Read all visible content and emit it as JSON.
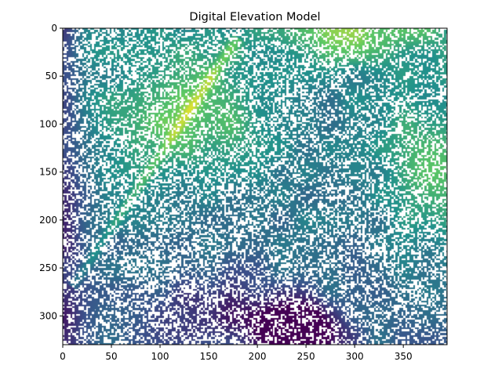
{
  "chart_data": {
    "type": "heatmap",
    "title": "Digital Elevation Model",
    "xlabel": "",
    "ylabel": "",
    "colormap": "viridis",
    "colormap_stops": [
      "#440154",
      "#3b528b",
      "#21918c",
      "#5ec962",
      "#fde725"
    ],
    "xlim": [
      0,
      395
    ],
    "ylim": [
      330,
      0
    ],
    "y_inverted": true,
    "grid": false,
    "x_ticks": [
      0,
      50,
      100,
      150,
      200,
      250,
      300,
      350
    ],
    "y_ticks": [
      0,
      50,
      100,
      150,
      200,
      250,
      300
    ],
    "nodata_color": "#ffffff",
    "features": [
      {
        "description": "high elevation band",
        "x": 130,
        "y": 90,
        "level": 0.97
      },
      {
        "description": "high elevation",
        "x": 380,
        "y": 150,
        "level": 0.92
      },
      {
        "description": "high elevation",
        "x": 300,
        "y": 5,
        "level": 0.95
      },
      {
        "description": "low basin",
        "x": 250,
        "y": 310,
        "level": 0.02
      },
      {
        "description": "low edge",
        "x": 5,
        "y": 100,
        "level": 0.28
      }
    ]
  }
}
